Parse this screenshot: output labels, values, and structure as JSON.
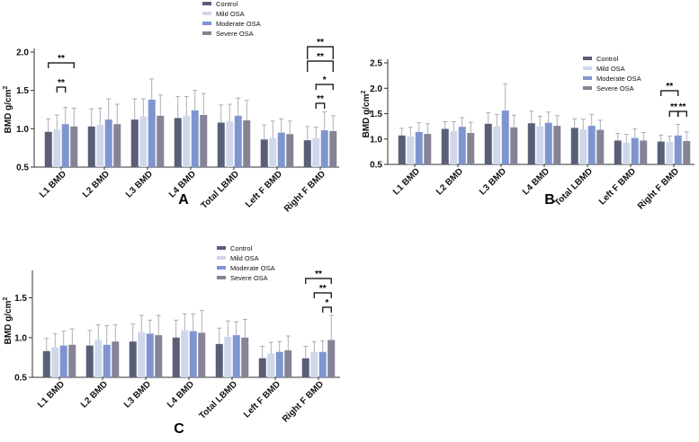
{
  "palette": {
    "control": "#5a5f78",
    "mild": "#cfd8ea",
    "moderate": "#7f95d0",
    "severe": "#858395",
    "error": "#9a9aa6",
    "axis": "#333333",
    "text": "#111111"
  },
  "chart_data": [
    {
      "type": "bar",
      "panel_label": "A",
      "ylabel": "BMD g/cm",
      "ylabel_sup": "2",
      "ylim": [
        0.5,
        2.0
      ],
      "yticks": [
        "0.5",
        "1.0",
        "1.5",
        "2.0"
      ],
      "legend_position": "top",
      "categories": [
        "L1 BMD",
        "L2 BMD",
        "L3 BMD",
        "L4 BMD",
        "Total LBMD",
        "Left F BMD",
        "Right F BMD"
      ],
      "series": [
        {
          "name": "Control",
          "values": [
            0.96,
            1.03,
            1.12,
            1.14,
            1.08,
            0.86,
            0.85
          ],
          "errors": [
            0.17,
            0.23,
            0.27,
            0.28,
            0.23,
            0.19,
            0.18
          ]
        },
        {
          "name": "Mild OSA",
          "values": [
            0.99,
            1.05,
            1.16,
            1.17,
            1.1,
            0.88,
            0.88
          ],
          "errors": [
            0.19,
            0.22,
            0.23,
            0.25,
            0.22,
            0.22,
            0.14
          ]
        },
        {
          "name": "Moderate OSA",
          "values": [
            1.06,
            1.12,
            1.38,
            1.24,
            1.17,
            0.95,
            0.98
          ],
          "errors": [
            0.22,
            0.27,
            0.27,
            0.26,
            0.23,
            0.18,
            0.24
          ]
        },
        {
          "name": "Severe OSA",
          "values": [
            1.03,
            1.06,
            1.17,
            1.18,
            1.11,
            0.93,
            0.97
          ],
          "errors": [
            0.24,
            0.26,
            0.27,
            0.28,
            0.26,
            0.17,
            0.2
          ]
        }
      ],
      "significance": [
        {
          "category": 0,
          "from": 0,
          "to": 3,
          "label": "**"
        },
        {
          "category": 0,
          "from": 1,
          "to": 2,
          "label": "**"
        },
        {
          "category": 6,
          "from": 0,
          "to": 3,
          "label": "**"
        },
        {
          "category": 6,
          "from": 0,
          "to": 3,
          "label": "**"
        },
        {
          "category": 6,
          "from": 1,
          "to": 3,
          "label": "*"
        },
        {
          "category": 6,
          "from": 1,
          "to": 2,
          "label": "**"
        }
      ]
    },
    {
      "type": "bar",
      "panel_label": "B",
      "ylabel": "BMD g/cm",
      "ylabel_sup": "2",
      "ylim": [
        0.5,
        2.5
      ],
      "yticks": [
        "0.5",
        "1.0",
        "1.5",
        "2.0",
        "2.5"
      ],
      "legend_position": "top-right",
      "categories": [
        "L1 BMD",
        "L2 BMD",
        "L3 BMD",
        "L4 BMD",
        "Total LBMD",
        "Left F BMD",
        "Right F BMD"
      ],
      "series": [
        {
          "name": "Control",
          "values": [
            1.07,
            1.2,
            1.3,
            1.31,
            1.22,
            0.97,
            0.95
          ],
          "errors": [
            0.14,
            0.14,
            0.22,
            0.24,
            0.18,
            0.14,
            0.13
          ]
        },
        {
          "name": "Mild OSA",
          "values": [
            1.05,
            1.16,
            1.25,
            1.25,
            1.19,
            0.93,
            0.94
          ],
          "errors": [
            0.18,
            0.18,
            0.23,
            0.2,
            0.2,
            0.16,
            0.12
          ]
        },
        {
          "name": "Moderate OSA",
          "values": [
            1.14,
            1.24,
            1.56,
            1.32,
            1.26,
            1.02,
            1.07
          ],
          "errors": [
            0.18,
            0.18,
            0.53,
            0.21,
            0.22,
            0.18,
            0.22
          ]
        },
        {
          "name": "Severe OSA",
          "values": [
            1.1,
            1.12,
            1.23,
            1.26,
            1.18,
            0.97,
            0.96
          ],
          "errors": [
            0.2,
            0.21,
            0.24,
            0.2,
            0.19,
            0.16,
            0.18
          ]
        }
      ],
      "significance": [
        {
          "category": 6,
          "from": 0,
          "to": 2,
          "label": "**"
        },
        {
          "category": 6,
          "from": 1,
          "to": 2,
          "label": "**"
        },
        {
          "category": 6,
          "from": 2,
          "to": 3,
          "label": "**"
        }
      ]
    },
    {
      "type": "bar",
      "panel_label": "C",
      "ylabel": "BMD g/cm",
      "ylabel_sup": "2",
      "ylim": [
        0.5,
        1.8
      ],
      "yticks": [
        "0.5",
        "1.0",
        "1.5"
      ],
      "legend_position": "top",
      "categories": [
        "L1 BMD",
        "L2 BMD",
        "L3 BMD",
        "L4 BMD",
        "Total LBMD",
        "Left F BMD",
        "Right F BMD"
      ],
      "series": [
        {
          "name": "Control",
          "values": [
            0.83,
            0.9,
            0.95,
            1.0,
            0.92,
            0.74,
            0.74
          ],
          "errors": [
            0.16,
            0.19,
            0.22,
            0.22,
            0.2,
            0.15,
            0.15
          ]
        },
        {
          "name": "Mild OSA",
          "values": [
            0.88,
            0.97,
            1.07,
            1.09,
            1.01,
            0.8,
            0.82
          ],
          "errors": [
            0.17,
            0.19,
            0.21,
            0.21,
            0.2,
            0.14,
            0.13
          ]
        },
        {
          "name": "Moderate OSA",
          "values": [
            0.9,
            0.91,
            1.05,
            1.08,
            1.03,
            0.82,
            0.82
          ],
          "errors": [
            0.18,
            0.24,
            0.17,
            0.22,
            0.17,
            0.13,
            0.14
          ]
        },
        {
          "name": "Severe OSA",
          "values": [
            0.91,
            0.95,
            1.03,
            1.06,
            1.0,
            0.84,
            0.97
          ],
          "errors": [
            0.2,
            0.21,
            0.25,
            0.28,
            0.23,
            0.18,
            0.31
          ]
        }
      ],
      "significance": [
        {
          "category": 6,
          "from": 0,
          "to": 3,
          "label": "**"
        },
        {
          "category": 6,
          "from": 1,
          "to": 3,
          "label": "**"
        },
        {
          "category": 6,
          "from": 2,
          "to": 3,
          "label": "*"
        }
      ]
    }
  ]
}
